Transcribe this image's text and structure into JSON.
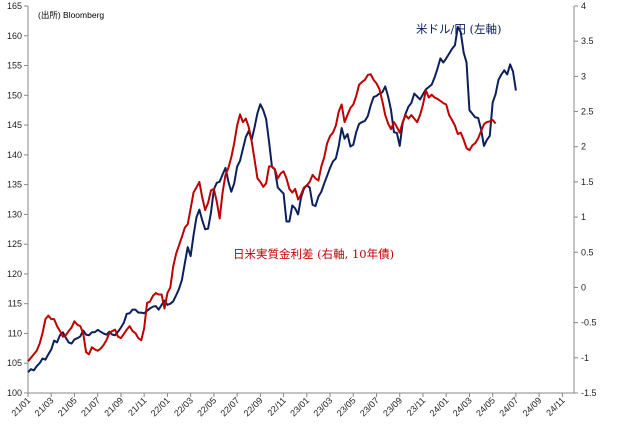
{
  "chart_data": {
    "type": "line",
    "source_note": "(出所) Bloomberg",
    "x_ticks": [
      "21/01",
      "21/03",
      "21/05",
      "21/07",
      "21/09",
      "21/11",
      "22/01",
      "22/03",
      "22/05",
      "22/07",
      "22/09",
      "22/11",
      "23/01",
      "23/03",
      "23/05",
      "23/07",
      "23/09",
      "23/11",
      "24/01",
      "24/03",
      "24/05",
      "24/07",
      "24/09",
      "24/11"
    ],
    "y_left": {
      "lim": [
        100,
        165
      ],
      "ticks": [
        "100",
        "105",
        "110",
        "115",
        "120",
        "125",
        "130",
        "135",
        "140",
        "145",
        "150",
        "155",
        "160",
        "165"
      ]
    },
    "y_right": {
      "lim": [
        -1.5,
        4
      ],
      "ticks": [
        "-1.5",
        "-1",
        "-0.5",
        "0",
        "0.5",
        "1",
        "1.5",
        "2",
        "2.5",
        "3",
        "3.5",
        "4"
      ]
    },
    "series": [
      {
        "name": "米ドル/円 (左軸)",
        "axis": "left",
        "color": "#0b1f5c",
        "x_start": "21/01",
        "x_step_months": 0.25,
        "values": [
          103.5,
          104,
          103.8,
          104.5,
          105,
          105.8,
          105.6,
          106.5,
          107.3,
          108.8,
          108.5,
          109.7,
          110.2,
          109.3,
          108.5,
          108.3,
          109,
          109.2,
          109.5,
          110.5,
          109.8,
          109.7,
          110.2,
          110.2,
          110.6,
          110.3,
          110,
          109.8,
          110.3,
          109.8,
          109.7,
          110.3,
          111,
          111.8,
          113.3,
          113.4,
          114,
          114,
          113.5,
          113.5,
          113.4,
          113.8,
          114.2,
          114.5,
          114.6,
          114,
          114.8,
          115.5,
          114.8,
          115,
          115.4,
          116.4,
          117.5,
          119,
          121.8,
          124.5,
          123,
          126.5,
          129.5,
          130.8,
          129,
          127.5,
          127.6,
          130.3,
          134.2,
          135.3,
          135.5,
          136.7,
          137.8,
          135.5,
          133.8,
          135.2,
          138,
          139,
          141,
          143,
          144,
          142.5,
          144.6,
          147,
          148.5,
          147.5,
          146,
          142.2,
          138,
          137.5,
          134.5,
          134,
          133.5,
          128.8,
          128.8,
          131.5,
          131,
          130,
          132.8,
          134.3,
          134.9,
          134.5,
          131.6,
          131.4,
          133,
          133.8,
          135.2,
          136.5,
          137.8,
          138.9,
          139.4,
          141.5,
          144.5,
          142.7,
          143.5,
          141.4,
          141.7,
          143.8,
          145.2,
          145.5,
          145.7,
          146.5,
          148.3,
          149.7,
          149.9,
          150.3,
          150.5,
          151.5,
          149.8,
          147.5,
          143.8,
          143.7,
          141.5,
          145.3,
          146.9,
          148.1,
          148.7,
          150.3,
          149.8,
          149.3,
          150.2,
          151,
          151.4,
          151.8,
          153,
          154.5,
          156.2,
          155.5,
          156.2,
          157,
          157.8,
          158.4,
          161.5,
          160.6,
          157.2,
          155.5,
          147.5,
          146.9,
          146.3,
          146.2,
          144.3,
          141.5,
          142.5,
          143.2,
          148.8,
          150.2,
          152.6,
          153.5,
          154.2,
          153.5,
          155.2,
          154,
          150.8
        ]
      },
      {
        "name": "日米実質金利差 (右軸, 10年債)",
        "axis": "right",
        "color": "#c00000",
        "x_start": "21/01",
        "x_step_months": 0.25,
        "values": [
          -1.05,
          -1,
          -0.95,
          -0.9,
          -0.8,
          -0.65,
          -0.45,
          -0.4,
          -0.45,
          -0.45,
          -0.55,
          -0.62,
          -0.7,
          -0.68,
          -0.62,
          -0.57,
          -0.48,
          -0.53,
          -0.55,
          -0.65,
          -0.92,
          -0.95,
          -0.85,
          -0.88,
          -0.9,
          -0.87,
          -0.82,
          -0.75,
          -0.65,
          -0.62,
          -0.6,
          -0.7,
          -0.72,
          -0.66,
          -0.6,
          -0.55,
          -0.62,
          -0.65,
          -0.72,
          -0.75,
          -0.58,
          -0.22,
          -0.2,
          -0.12,
          -0.08,
          -0.1,
          -0.1,
          -0.3,
          -0.08,
          0,
          0.3,
          0.48,
          0.6,
          0.72,
          0.85,
          0.9,
          1.12,
          1.35,
          1.42,
          1.5,
          1.28,
          1.1,
          1.2,
          1.38,
          1.4,
          1.22,
          0.98,
          1.35,
          1.6,
          1.7,
          1.85,
          2.05,
          2.3,
          2.46,
          2.35,
          2.4,
          2.28,
          2.08,
          1.82,
          1.55,
          1.5,
          1.43,
          1.48,
          1.72,
          1.72,
          1.68,
          1.55,
          1.62,
          1.65,
          1.55,
          1.4,
          1.35,
          1.4,
          1.25,
          1.32,
          1.42,
          1.45,
          1.5,
          1.6,
          1.55,
          1.52,
          1.72,
          1.85,
          2.05,
          2.15,
          2.2,
          2.3,
          2.5,
          2.6,
          2.35,
          2.45,
          2.55,
          2.6,
          2.72,
          2.88,
          2.92,
          2.95,
          3.02,
          3.03,
          2.95,
          2.9,
          2.82,
          2.65,
          2.45,
          2.33,
          2.25,
          2.35,
          2.28,
          2.2,
          2.35,
          2.45,
          2.4,
          2.45,
          2.4,
          2.35,
          2.45,
          2.6,
          2.8,
          2.7,
          2.74,
          2.7,
          2.68,
          2.65,
          2.62,
          2.6,
          2.45,
          2.38,
          2.3,
          2.18,
          2.2,
          2.1,
          1.98,
          1.95,
          2.02,
          2.05,
          2.12,
          2.22,
          2.32,
          2.35,
          2.36,
          2.38,
          2.33
        ]
      }
    ],
    "annotations": [
      {
        "text": "米ドル/円 (左軸)",
        "color": "#0b1f5c"
      },
      {
        "text": "日米実質金利差 (右軸, 10年債)",
        "color": "#c00000"
      }
    ],
    "grid": false,
    "legend": "none"
  }
}
